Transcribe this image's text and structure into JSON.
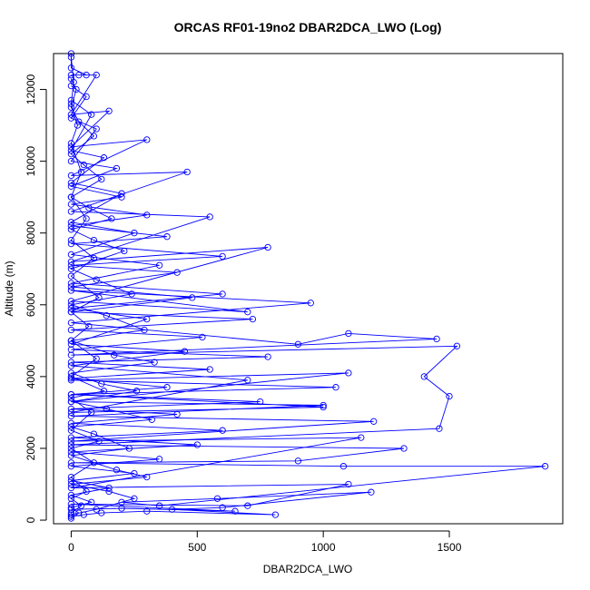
{
  "chart_data": {
    "type": "scatter",
    "title": "ORCAS RF01-19no2 DBAR2DCA_LWO (Log)",
    "xlabel": "DBAR2DCA_LWO",
    "ylabel": "Altitude (m)",
    "xlim": [
      -70,
      1950
    ],
    "ylim": [
      -100,
      13000
    ],
    "x_ticks": [
      0,
      500,
      1000,
      1500
    ],
    "y_ticks": [
      0,
      2000,
      4000,
      6000,
      8000,
      10000,
      12000
    ],
    "line_style": "points connected by lines",
    "grid": false,
    "legend": "none",
    "color": "#0000ff",
    "series": [
      {
        "points": [
          [
            0,
            100
          ],
          [
            50,
            150
          ],
          [
            120,
            200
          ],
          [
            300,
            250
          ],
          [
            810,
            150
          ],
          [
            400,
            300
          ],
          [
            600,
            350
          ],
          [
            1190,
            780
          ],
          [
            580,
            600
          ],
          [
            200,
            500
          ],
          [
            350,
            400
          ],
          [
            1880,
            1500
          ],
          [
            1080,
            1500
          ],
          [
            0,
            1600
          ],
          [
            900,
            1650
          ],
          [
            1320,
            2000
          ],
          [
            0,
            2100
          ],
          [
            1460,
            2550
          ],
          [
            1500,
            3450
          ],
          [
            1400,
            4000
          ],
          [
            1530,
            4850
          ],
          [
            0,
            4600
          ],
          [
            1450,
            5050
          ],
          [
            1100,
            5200
          ],
          [
            900,
            4900
          ],
          [
            0,
            5500
          ],
          [
            950,
            6050
          ],
          [
            0,
            6400
          ],
          [
            700,
            5800
          ],
          [
            0,
            6100
          ],
          [
            780,
            7600
          ],
          [
            0,
            7200
          ],
          [
            550,
            8450
          ],
          [
            0,
            8600
          ],
          [
            460,
            9700
          ],
          [
            0,
            9600
          ],
          [
            300,
            10600
          ],
          [
            0,
            10400
          ],
          [
            150,
            11400
          ],
          [
            0,
            11300
          ],
          [
            100,
            12400
          ],
          [
            0,
            12400
          ],
          [
            30,
            12400
          ],
          [
            60,
            12400
          ],
          [
            0,
            12600
          ],
          [
            0,
            13000
          ]
        ]
      },
      {
        "points": [
          [
            0,
            300
          ],
          [
            200,
            330
          ],
          [
            650,
            250
          ],
          [
            0,
            450
          ],
          [
            700,
            400
          ],
          [
            1100,
            1000
          ],
          [
            0,
            900
          ],
          [
            1150,
            2300
          ],
          [
            0,
            2200
          ],
          [
            1200,
            2750
          ],
          [
            0,
            2900
          ],
          [
            1000,
            3200
          ],
          [
            0,
            3300
          ],
          [
            1100,
            4100
          ],
          [
            0,
            3900
          ],
          [
            1050,
            3700
          ],
          [
            0,
            3500
          ],
          [
            1000,
            3150
          ],
          [
            0,
            3000
          ],
          [
            700,
            3900
          ],
          [
            0,
            4300
          ],
          [
            450,
            4700
          ],
          [
            0,
            4900
          ],
          [
            300,
            5600
          ],
          [
            0,
            5900
          ],
          [
            600,
            6300
          ],
          [
            0,
            6600
          ],
          [
            350,
            7100
          ],
          [
            0,
            7400
          ],
          [
            250,
            8000
          ],
          [
            0,
            8300
          ],
          [
            200,
            9100
          ],
          [
            0,
            9400
          ],
          [
            130,
            10100
          ],
          [
            0,
            10300
          ],
          [
            80,
            11300
          ],
          [
            0,
            11700
          ]
        ]
      },
      {
        "points": [
          [
            0,
            50
          ],
          [
            30,
            200
          ],
          [
            0,
            350
          ],
          [
            80,
            500
          ],
          [
            0,
            700
          ],
          [
            150,
            900
          ],
          [
            0,
            1100
          ],
          [
            250,
            1300
          ],
          [
            0,
            1500
          ],
          [
            350,
            1700
          ],
          [
            0,
            1900
          ],
          [
            500,
            2100
          ],
          [
            0,
            2300
          ],
          [
            600,
            2500
          ],
          [
            0,
            2700
          ],
          [
            420,
            2950
          ],
          [
            0,
            3100
          ],
          [
            750,
            3300
          ],
          [
            0,
            3500
          ],
          [
            380,
            3700
          ],
          [
            0,
            3950
          ],
          [
            550,
            4200
          ],
          [
            0,
            4400
          ],
          [
            780,
            4550
          ],
          [
            0,
            4750
          ],
          [
            520,
            5100
          ],
          [
            0,
            5300
          ],
          [
            720,
            5600
          ],
          [
            0,
            5800
          ],
          [
            480,
            6200
          ],
          [
            0,
            6500
          ],
          [
            420,
            6900
          ],
          [
            0,
            7100
          ],
          [
            600,
            7350
          ],
          [
            0,
            7700
          ],
          [
            380,
            7900
          ],
          [
            0,
            8200
          ],
          [
            300,
            8500
          ],
          [
            0,
            8800
          ],
          [
            200,
            9000
          ],
          [
            0,
            9300
          ],
          [
            180,
            9800
          ],
          [
            0,
            10000
          ],
          [
            100,
            10900
          ],
          [
            0,
            11200
          ],
          [
            60,
            11800
          ],
          [
            0,
            12100
          ]
        ]
      },
      {
        "points": [
          [
            0,
            150
          ],
          [
            100,
            300
          ],
          [
            250,
            600
          ],
          [
            150,
            800
          ],
          [
            0,
            1000
          ],
          [
            300,
            1200
          ],
          [
            180,
            1400
          ],
          [
            0,
            1800
          ],
          [
            230,
            2000
          ],
          [
            90,
            2400
          ],
          [
            0,
            2600
          ],
          [
            320,
            2800
          ],
          [
            140,
            3100
          ],
          [
            0,
            3300
          ],
          [
            260,
            3600
          ],
          [
            120,
            3800
          ],
          [
            0,
            4100
          ],
          [
            330,
            4400
          ],
          [
            170,
            4600
          ],
          [
            0,
            5000
          ],
          [
            290,
            5300
          ],
          [
            140,
            5700
          ],
          [
            0,
            6000
          ],
          [
            240,
            6300
          ],
          [
            100,
            6700
          ],
          [
            0,
            7000
          ],
          [
            210,
            7500
          ],
          [
            90,
            7800
          ],
          [
            0,
            8100
          ],
          [
            160,
            8400
          ],
          [
            70,
            8700
          ],
          [
            0,
            9000
          ],
          [
            120,
            9500
          ],
          [
            50,
            9900
          ],
          [
            0,
            10200
          ],
          [
            90,
            10700
          ],
          [
            30,
            11100
          ],
          [
            0,
            11500
          ],
          [
            20,
            12000
          ],
          [
            0,
            12300
          ]
        ]
      },
      {
        "points": [
          [
            0,
            200
          ],
          [
            40,
            400
          ],
          [
            0,
            600
          ],
          [
            60,
            800
          ],
          [
            0,
            1200
          ],
          [
            90,
            1600
          ],
          [
            0,
            2000
          ],
          [
            110,
            2200
          ],
          [
            0,
            2500
          ],
          [
            80,
            3000
          ],
          [
            0,
            3400
          ],
          [
            130,
            3600
          ],
          [
            0,
            4000
          ],
          [
            100,
            4500
          ],
          [
            0,
            5000
          ],
          [
            70,
            5400
          ],
          [
            0,
            5800
          ],
          [
            110,
            6200
          ],
          [
            0,
            6800
          ],
          [
            90,
            7300
          ],
          [
            0,
            7800
          ],
          [
            60,
            8400
          ],
          [
            0,
            9000
          ],
          [
            40,
            9700
          ],
          [
            0,
            10500
          ],
          [
            25,
            11000
          ],
          [
            0,
            11600
          ],
          [
            10,
            12200
          ],
          [
            0,
            12900
          ]
        ]
      }
    ]
  }
}
